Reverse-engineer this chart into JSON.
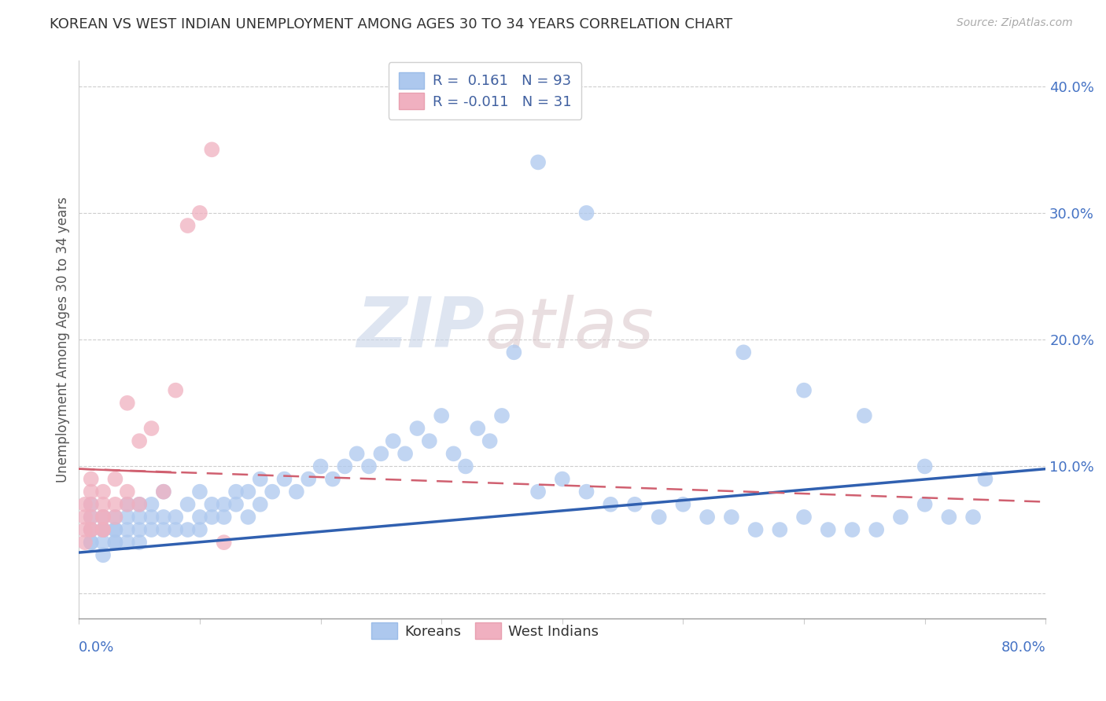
{
  "title": "KOREAN VS WEST INDIAN UNEMPLOYMENT AMONG AGES 30 TO 34 YEARS CORRELATION CHART",
  "source": "Source: ZipAtlas.com",
  "ylabel": "Unemployment Among Ages 30 to 34 years",
  "xlim": [
    0.0,
    0.8
  ],
  "ylim": [
    -0.02,
    0.42
  ],
  "korean_R": 0.161,
  "korean_N": 93,
  "westindian_R": -0.011,
  "westindian_N": 31,
  "korean_color": "#adc8ee",
  "westindian_color": "#f0b0c0",
  "korean_line_color": "#3060b0",
  "westindian_line_color": "#d06070",
  "background_color": "#ffffff",
  "watermark_zip": "ZIP",
  "watermark_atlas": "atlas",
  "legend_labels": [
    "Koreans",
    "West Indians"
  ],
  "korean_trend_x0": 0.0,
  "korean_trend_y0": 0.032,
  "korean_trend_x1": 0.8,
  "korean_trend_y1": 0.098,
  "wi_trend_x0": 0.0,
  "wi_trend_y0": 0.098,
  "wi_trend_x1": 0.8,
  "wi_trend_y1": 0.072,
  "korean_x": [
    0.01,
    0.01,
    0.01,
    0.01,
    0.01,
    0.02,
    0.02,
    0.02,
    0.02,
    0.02,
    0.03,
    0.03,
    0.03,
    0.03,
    0.03,
    0.04,
    0.04,
    0.04,
    0.04,
    0.05,
    0.05,
    0.05,
    0.05,
    0.06,
    0.06,
    0.06,
    0.07,
    0.07,
    0.07,
    0.08,
    0.08,
    0.09,
    0.09,
    0.1,
    0.1,
    0.1,
    0.11,
    0.11,
    0.12,
    0.12,
    0.13,
    0.13,
    0.14,
    0.14,
    0.15,
    0.15,
    0.16,
    0.17,
    0.18,
    0.19,
    0.2,
    0.21,
    0.22,
    0.23,
    0.24,
    0.25,
    0.26,
    0.27,
    0.28,
    0.29,
    0.3,
    0.31,
    0.32,
    0.33,
    0.34,
    0.35,
    0.36,
    0.38,
    0.4,
    0.42,
    0.44,
    0.46,
    0.48,
    0.5,
    0.52,
    0.54,
    0.56,
    0.58,
    0.6,
    0.62,
    0.64,
    0.66,
    0.68,
    0.7,
    0.72,
    0.74,
    0.38,
    0.42,
    0.55,
    0.6,
    0.65,
    0.7,
    0.75
  ],
  "korean_y": [
    0.04,
    0.05,
    0.04,
    0.06,
    0.07,
    0.04,
    0.05,
    0.06,
    0.03,
    0.05,
    0.04,
    0.05,
    0.06,
    0.05,
    0.04,
    0.06,
    0.05,
    0.07,
    0.04,
    0.05,
    0.06,
    0.07,
    0.04,
    0.06,
    0.05,
    0.07,
    0.06,
    0.05,
    0.08,
    0.06,
    0.05,
    0.07,
    0.05,
    0.08,
    0.06,
    0.05,
    0.07,
    0.06,
    0.07,
    0.06,
    0.08,
    0.07,
    0.08,
    0.06,
    0.09,
    0.07,
    0.08,
    0.09,
    0.08,
    0.09,
    0.1,
    0.09,
    0.1,
    0.11,
    0.1,
    0.11,
    0.12,
    0.11,
    0.13,
    0.12,
    0.14,
    0.11,
    0.1,
    0.13,
    0.12,
    0.14,
    0.19,
    0.08,
    0.09,
    0.08,
    0.07,
    0.07,
    0.06,
    0.07,
    0.06,
    0.06,
    0.05,
    0.05,
    0.06,
    0.05,
    0.05,
    0.05,
    0.06,
    0.07,
    0.06,
    0.06,
    0.34,
    0.3,
    0.19,
    0.16,
    0.14,
    0.1,
    0.09
  ],
  "wi_x": [
    0.005,
    0.005,
    0.005,
    0.005,
    0.01,
    0.01,
    0.01,
    0.01,
    0.01,
    0.01,
    0.02,
    0.02,
    0.02,
    0.02,
    0.02,
    0.02,
    0.03,
    0.03,
    0.03,
    0.04,
    0.04,
    0.04,
    0.05,
    0.05,
    0.06,
    0.07,
    0.08,
    0.09,
    0.1,
    0.11,
    0.12
  ],
  "wi_y": [
    0.05,
    0.06,
    0.07,
    0.04,
    0.05,
    0.06,
    0.07,
    0.08,
    0.05,
    0.09,
    0.05,
    0.06,
    0.07,
    0.08,
    0.05,
    0.06,
    0.06,
    0.09,
    0.07,
    0.07,
    0.15,
    0.08,
    0.12,
    0.07,
    0.13,
    0.08,
    0.16,
    0.29,
    0.3,
    0.35,
    0.04
  ]
}
